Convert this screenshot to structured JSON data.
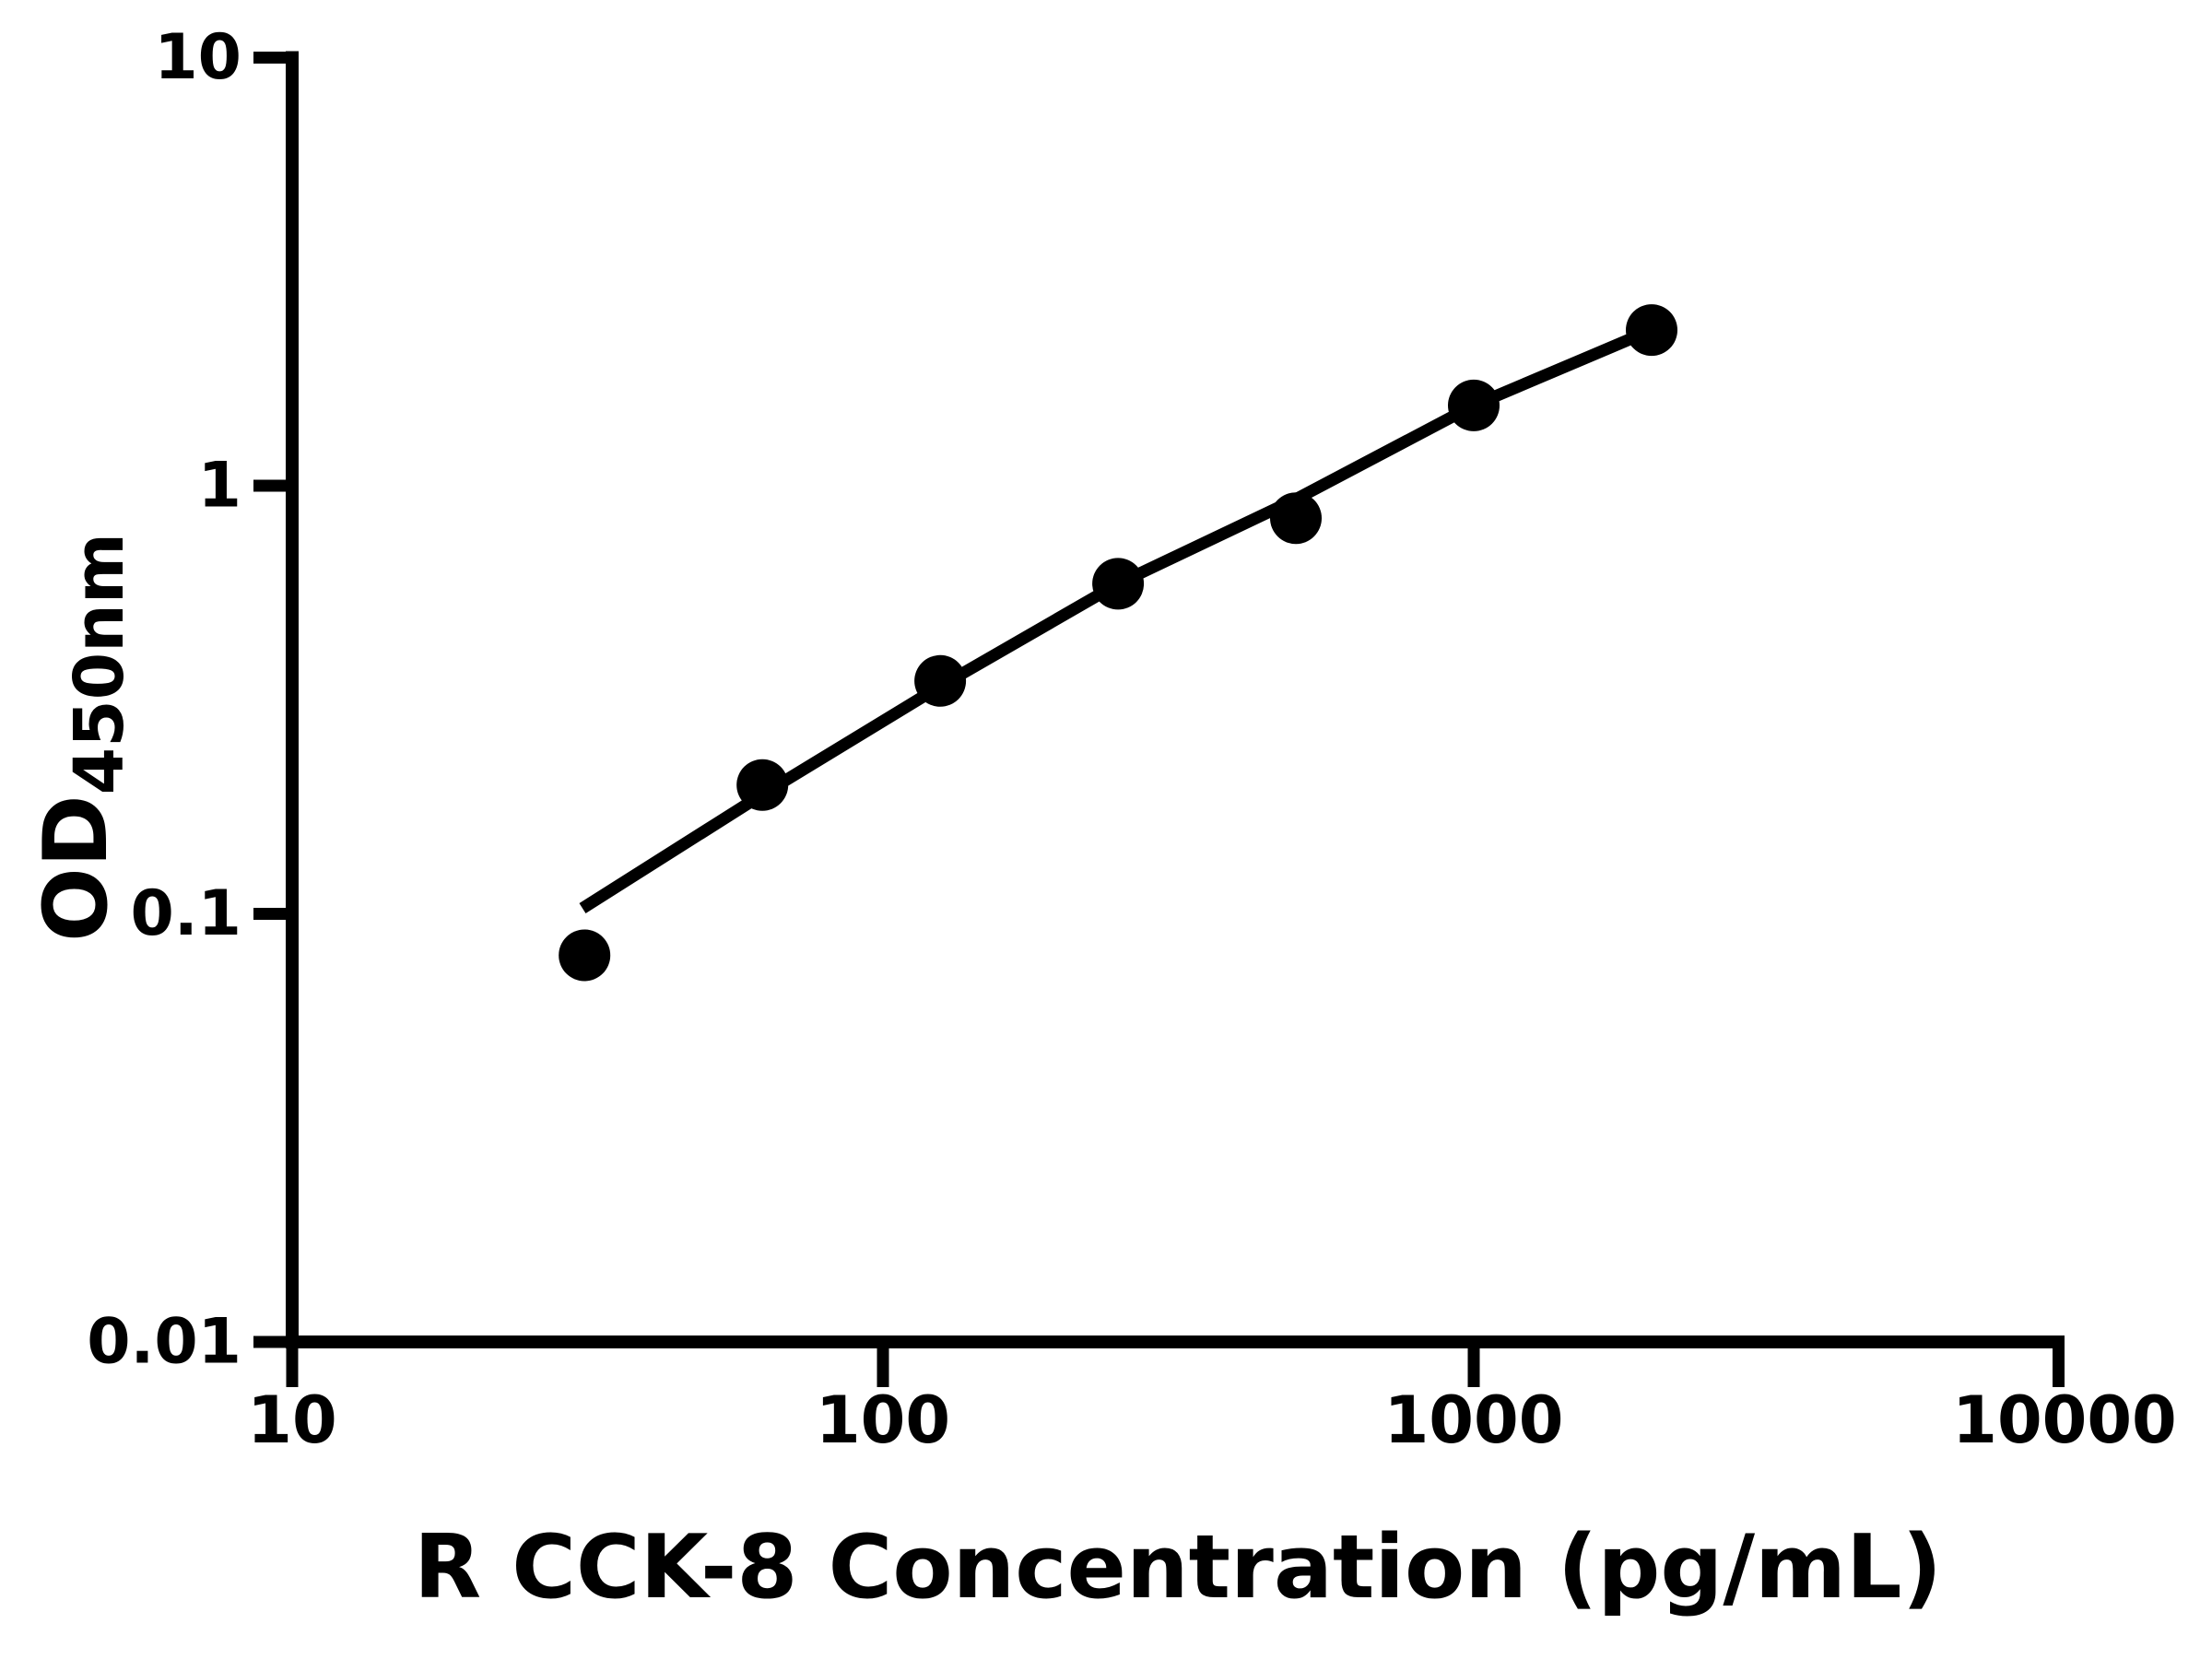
{
  "figure": {
    "background_color": "#ffffff",
    "ink_color": "#000000"
  },
  "chart_data": {
    "type": "scatter",
    "title": "",
    "xlabel": "R CCK-8 Concentration (pg/mL)",
    "ylabel_main": "OD",
    "ylabel_sub": "450nm",
    "x_scale": "log",
    "y_scale": "log",
    "xlim": [
      10,
      10000
    ],
    "ylim": [
      0.01,
      10
    ],
    "grid": false,
    "legend": "none",
    "x_ticks": [
      10,
      100,
      1000,
      10000
    ],
    "x_tick_labels": [
      "10",
      "100",
      "1000",
      "10000"
    ],
    "y_ticks": [
      10,
      1,
      0.1,
      0.01
    ],
    "y_tick_labels": [
      "10",
      "1",
      "0.1",
      "0.01"
    ],
    "series": [
      {
        "name": "standard-points",
        "type": "scatter",
        "marker": "filled-circle",
        "color": "#000000",
        "x": [
          31.25,
          62.5,
          125,
          250,
          500,
          1000,
          2000
        ],
        "y": [
          0.08,
          0.2,
          0.35,
          0.59,
          0.84,
          1.54,
          2.31
        ]
      },
      {
        "name": "fit-line",
        "type": "line",
        "color": "#000000",
        "x": [
          31,
          62.5,
          125,
          250,
          500,
          1000,
          2000
        ],
        "y": [
          0.103,
          0.19,
          0.34,
          0.59,
          0.93,
          1.54,
          2.31
        ]
      }
    ]
  }
}
